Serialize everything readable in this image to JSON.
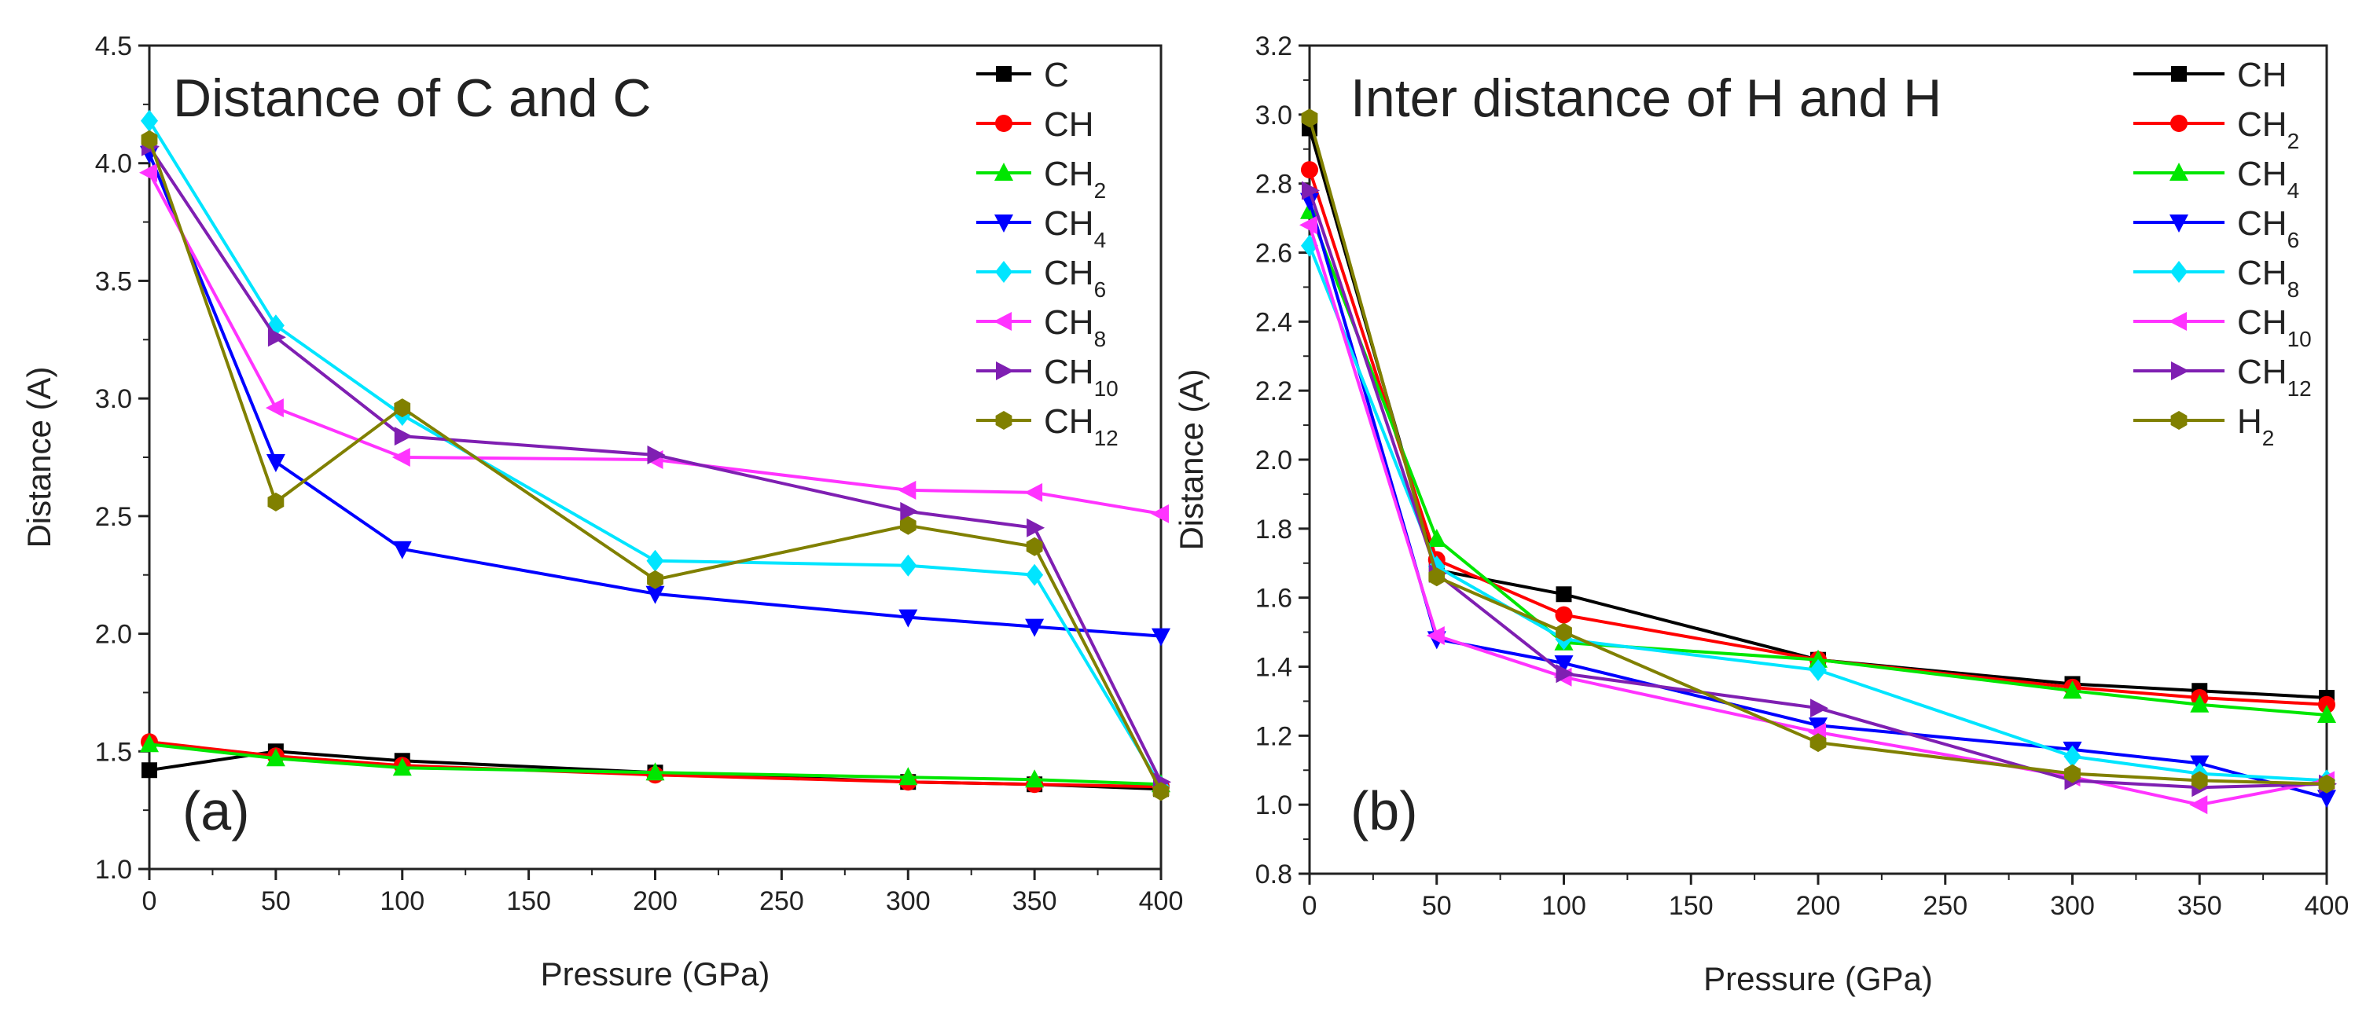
{
  "chart_data": [
    {
      "type": "line",
      "panel_label": "(a)",
      "title": "Distance of C and C",
      "xlabel": "Pressure (GPa)",
      "ylabel": "Distance (A)",
      "xlim": [
        0,
        400
      ],
      "ylim": [
        1.0,
        4.5
      ],
      "xticks": [
        0,
        50,
        100,
        150,
        200,
        250,
        300,
        350,
        400
      ],
      "xtick_labels": [
        "0",
        "50",
        "100",
        "150",
        "200",
        "250",
        "300",
        "350",
        "400"
      ],
      "yticks": [
        1.0,
        1.5,
        2.0,
        2.5,
        3.0,
        3.5,
        4.0,
        4.5
      ],
      "ytick_labels": [
        "1.0",
        "1.5",
        "2.0",
        "2.5",
        "3.0",
        "3.5",
        "4.0",
        "4.5"
      ],
      "grid": false,
      "legend_position": "top-right",
      "x": [
        0,
        50,
        100,
        200,
        300,
        350,
        400
      ],
      "series": [
        {
          "name": "C",
          "main": "C",
          "sub": "",
          "color": "#000000",
          "marker": "square",
          "values": [
            1.42,
            1.5,
            1.46,
            1.41,
            1.37,
            1.36,
            1.34
          ]
        },
        {
          "name": "CH",
          "main": "CH",
          "sub": "",
          "color": "#ff0000",
          "marker": "circle",
          "values": [
            1.54,
            1.48,
            1.44,
            1.4,
            1.37,
            1.36,
            1.35
          ]
        },
        {
          "name": "CH2",
          "main": "CH",
          "sub": "2",
          "color": "#00e600",
          "marker": "triangle-up",
          "values": [
            1.53,
            1.47,
            1.43,
            1.41,
            1.39,
            1.38,
            1.36
          ]
        },
        {
          "name": "CH4",
          "main": "CH",
          "sub": "4",
          "color": "#0000ff",
          "marker": "triangle-down",
          "values": [
            4.04,
            2.73,
            2.36,
            2.17,
            2.07,
            2.03,
            1.99
          ]
        },
        {
          "name": "CH6",
          "main": "CH",
          "sub": "6",
          "color": "#00e5ff",
          "marker": "diamond",
          "values": [
            4.18,
            3.31,
            2.93,
            2.31,
            2.29,
            2.25,
            1.35
          ]
        },
        {
          "name": "CH8",
          "main": "CH",
          "sub": "8",
          "color": "#ff33ff",
          "marker": "triangle-left",
          "values": [
            3.96,
            2.96,
            2.75,
            2.74,
            2.61,
            2.6,
            2.51
          ]
        },
        {
          "name": "CH10",
          "main": "CH",
          "sub": "10",
          "color": "#7f1fb2",
          "marker": "triangle-right",
          "values": [
            4.07,
            3.26,
            2.84,
            2.76,
            2.52,
            2.45,
            1.37
          ]
        },
        {
          "name": "CH12",
          "main": "CH",
          "sub": "12",
          "color": "#808000",
          "marker": "hexagon",
          "values": [
            4.1,
            2.56,
            2.96,
            2.23,
            2.46,
            2.37,
            1.33
          ]
        }
      ]
    },
    {
      "type": "line",
      "panel_label": "(b)",
      "title": "Inter distance of H and H",
      "xlabel": "Pressure (GPa)",
      "ylabel": "Distance (A)",
      "xlim": [
        0,
        400
      ],
      "ylim": [
        0.8,
        3.2
      ],
      "xticks": [
        0,
        50,
        100,
        150,
        200,
        250,
        300,
        350,
        400
      ],
      "xtick_labels": [
        "0",
        "50",
        "100",
        "150",
        "200",
        "250",
        "300",
        "350",
        "400"
      ],
      "yticks": [
        0.8,
        1.0,
        1.2,
        1.4,
        1.6,
        1.8,
        2.0,
        2.2,
        2.4,
        2.6,
        2.8,
        3.0,
        3.2
      ],
      "ytick_labels": [
        "0.8",
        "1.0",
        "1.2",
        "1.4",
        "1.6",
        "1.8",
        "2.0",
        "2.2",
        "2.4",
        "2.6",
        "2.8",
        "3.0",
        "3.2"
      ],
      "grid": false,
      "legend_position": "top-right",
      "x": [
        0,
        50,
        100,
        200,
        300,
        350,
        400
      ],
      "series": [
        {
          "name": "CH",
          "main": "CH",
          "sub": "",
          "color": "#000000",
          "marker": "square",
          "values": [
            2.96,
            1.68,
            1.61,
            1.42,
            1.35,
            1.33,
            1.31
          ]
        },
        {
          "name": "CH2",
          "main": "CH",
          "sub": "2",
          "color": "#ff0000",
          "marker": "circle",
          "values": [
            2.84,
            1.71,
            1.55,
            1.42,
            1.34,
            1.31,
            1.29
          ]
        },
        {
          "name": "CH4",
          "main": "CH",
          "sub": "4",
          "color": "#00e600",
          "marker": "triangle-up",
          "values": [
            2.72,
            1.77,
            1.47,
            1.42,
            1.33,
            1.29,
            1.26
          ]
        },
        {
          "name": "CH6",
          "main": "CH",
          "sub": "6",
          "color": "#0000ff",
          "marker": "triangle-down",
          "values": [
            2.75,
            1.48,
            1.41,
            1.23,
            1.16,
            1.12,
            1.02
          ]
        },
        {
          "name": "CH8",
          "main": "CH",
          "sub": "8",
          "color": "#00e5ff",
          "marker": "diamond",
          "values": [
            2.62,
            1.69,
            1.48,
            1.39,
            1.14,
            1.09,
            1.07
          ]
        },
        {
          "name": "CH10",
          "main": "CH",
          "sub": "10",
          "color": "#ff33ff",
          "marker": "triangle-left",
          "values": [
            2.68,
            1.49,
            1.37,
            1.21,
            1.08,
            1.0,
            1.07
          ]
        },
        {
          "name": "CH12",
          "main": "CH",
          "sub": "12",
          "color": "#7f1fb2",
          "marker": "triangle-right",
          "values": [
            2.78,
            1.67,
            1.38,
            1.28,
            1.07,
            1.05,
            1.06
          ]
        },
        {
          "name": "H2",
          "main": "H",
          "sub": "2",
          "color": "#808000",
          "marker": "hexagon",
          "values": [
            2.99,
            1.66,
            1.5,
            1.18,
            1.09,
            1.07,
            1.06
          ]
        }
      ]
    }
  ]
}
